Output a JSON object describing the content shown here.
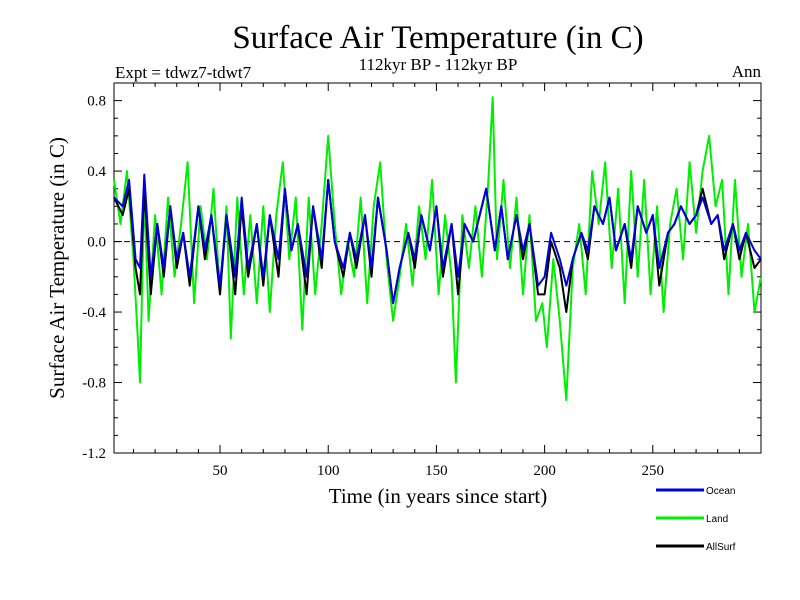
{
  "chart_data": {
    "type": "line",
    "title": "Surface Air Temperature (in C)",
    "subtitle": "112kyr BP - 112kyr BP",
    "experiment_label": "Expt = tdwz7-tdwt7",
    "season_label": "Ann",
    "xlabel": "Time (in years since start)",
    "ylabel": "Surface Air Temperature (in C)",
    "xlim": [
      1,
      300
    ],
    "ylim": [
      -1.2,
      0.9
    ],
    "x_ticks": [
      50,
      100,
      150,
      200,
      250
    ],
    "x_tick_labels": [
      "50",
      "100",
      "150",
      "200",
      "250"
    ],
    "y_ticks": [
      -1.2,
      -0.8,
      -0.4,
      0.0,
      0.4,
      0.8
    ],
    "y_tick_labels": [
      "-1.2",
      "-0.8",
      "-0.4",
      "0.0",
      "0.4",
      "0.8"
    ],
    "zero_line": "dashed",
    "grid": false,
    "legend_position": "below-right",
    "series": [
      {
        "name": "Ocean",
        "color": "#0000dd",
        "points": [
          [
            1,
            0.25
          ],
          [
            5,
            0.2
          ],
          [
            8,
            0.35
          ],
          [
            11,
            -0.1
          ],
          [
            13,
            -0.15
          ],
          [
            15,
            0.38
          ],
          [
            18,
            -0.2
          ],
          [
            21,
            0.1
          ],
          [
            24,
            -0.15
          ],
          [
            27,
            0.2
          ],
          [
            30,
            -0.1
          ],
          [
            33,
            0.05
          ],
          [
            36,
            -0.2
          ],
          [
            40,
            0.2
          ],
          [
            43,
            -0.05
          ],
          [
            46,
            0.15
          ],
          [
            50,
            -0.25
          ],
          [
            53,
            0.15
          ],
          [
            57,
            -0.2
          ],
          [
            60,
            0.25
          ],
          [
            63,
            -0.15
          ],
          [
            67,
            0.1
          ],
          [
            70,
            -0.2
          ],
          [
            73,
            0.15
          ],
          [
            77,
            -0.1
          ],
          [
            80,
            0.3
          ],
          [
            83,
            -0.05
          ],
          [
            86,
            0.1
          ],
          [
            90,
            -0.2
          ],
          [
            93,
            0.2
          ],
          [
            97,
            -0.1
          ],
          [
            100,
            0.35
          ],
          [
            103,
            0.0
          ],
          [
            107,
            -0.15
          ],
          [
            110,
            0.05
          ],
          [
            113,
            -0.1
          ],
          [
            117,
            0.15
          ],
          [
            120,
            -0.15
          ],
          [
            123,
            0.25
          ],
          [
            127,
            -0.05
          ],
          [
            130,
            -0.35
          ],
          [
            133,
            -0.15
          ],
          [
            137,
            0.05
          ],
          [
            140,
            -0.1
          ],
          [
            143,
            0.15
          ],
          [
            147,
            -0.05
          ],
          [
            150,
            0.2
          ],
          [
            153,
            -0.15
          ],
          [
            157,
            0.1
          ],
          [
            160,
            -0.2
          ],
          [
            163,
            0.1
          ],
          [
            167,
            0.0
          ],
          [
            170,
            0.15
          ],
          [
            173,
            0.3
          ],
          [
            177,
            -0.05
          ],
          [
            180,
            0.2
          ],
          [
            183,
            -0.1
          ],
          [
            187,
            0.15
          ],
          [
            190,
            -0.05
          ],
          [
            193,
            0.1
          ],
          [
            197,
            -0.25
          ],
          [
            200,
            -0.2
          ],
          [
            203,
            0.05
          ],
          [
            207,
            -0.1
          ],
          [
            210,
            -0.25
          ],
          [
            213,
            -0.1
          ],
          [
            217,
            0.05
          ],
          [
            220,
            -0.05
          ],
          [
            223,
            0.2
          ],
          [
            227,
            0.1
          ],
          [
            230,
            0.25
          ],
          [
            233,
            -0.05
          ],
          [
            237,
            0.1
          ],
          [
            240,
            -0.1
          ],
          [
            243,
            0.2
          ],
          [
            247,
            0.05
          ],
          [
            250,
            0.15
          ],
          [
            253,
            -0.15
          ],
          [
            257,
            0.05
          ],
          [
            260,
            0.1
          ],
          [
            263,
            0.2
          ],
          [
            267,
            0.1
          ],
          [
            270,
            0.15
          ],
          [
            273,
            0.25
          ],
          [
            277,
            0.1
          ],
          [
            280,
            0.15
          ],
          [
            283,
            -0.05
          ],
          [
            287,
            0.1
          ],
          [
            290,
            -0.05
          ],
          [
            293,
            0.05
          ],
          [
            297,
            -0.05
          ],
          [
            300,
            -0.1
          ]
        ]
      },
      {
        "name": "Land",
        "color": "#00ee00",
        "points": [
          [
            1,
            0.35
          ],
          [
            4,
            0.1
          ],
          [
            7,
            0.4
          ],
          [
            10,
            -0.1
          ],
          [
            12,
            -0.55
          ],
          [
            13,
            -0.8
          ],
          [
            15,
            0.3
          ],
          [
            17,
            -0.45
          ],
          [
            20,
            0.15
          ],
          [
            23,
            -0.3
          ],
          [
            26,
            0.25
          ],
          [
            29,
            -0.2
          ],
          [
            32,
            0.1
          ],
          [
            35,
            0.45
          ],
          [
            38,
            -0.35
          ],
          [
            41,
            0.2
          ],
          [
            44,
            -0.1
          ],
          [
            47,
            0.3
          ],
          [
            50,
            -0.3
          ],
          [
            53,
            0.2
          ],
          [
            55,
            -0.55
          ],
          [
            58,
            0.25
          ],
          [
            61,
            -0.3
          ],
          [
            64,
            0.15
          ],
          [
            67,
            -0.35
          ],
          [
            70,
            0.2
          ],
          [
            73,
            -0.4
          ],
          [
            76,
            0.15
          ],
          [
            79,
            0.45
          ],
          [
            82,
            -0.1
          ],
          [
            85,
            0.25
          ],
          [
            88,
            -0.5
          ],
          [
            91,
            0.25
          ],
          [
            94,
            -0.3
          ],
          [
            97,
            0.1
          ],
          [
            100,
            0.6
          ],
          [
            103,
            0.1
          ],
          [
            106,
            -0.3
          ],
          [
            109,
            0.0
          ],
          [
            112,
            -0.2
          ],
          [
            115,
            0.25
          ],
          [
            118,
            -0.35
          ],
          [
            121,
            0.2
          ],
          [
            124,
            0.45
          ],
          [
            127,
            -0.1
          ],
          [
            130,
            -0.45
          ],
          [
            133,
            -0.2
          ],
          [
            136,
            0.1
          ],
          [
            139,
            -0.25
          ],
          [
            142,
            0.2
          ],
          [
            145,
            -0.1
          ],
          [
            148,
            0.35
          ],
          [
            151,
            -0.3
          ],
          [
            154,
            0.15
          ],
          [
            157,
            -0.2
          ],
          [
            159,
            -0.8
          ],
          [
            162,
            0.15
          ],
          [
            165,
            -0.15
          ],
          [
            168,
            0.2
          ],
          [
            171,
            -0.2
          ],
          [
            174,
            0.35
          ],
          [
            176,
            0.82
          ],
          [
            178,
            -0.1
          ],
          [
            181,
            0.35
          ],
          [
            184,
            -0.15
          ],
          [
            187,
            0.25
          ],
          [
            190,
            -0.3
          ],
          [
            193,
            0.15
          ],
          [
            196,
            -0.45
          ],
          [
            199,
            -0.35
          ],
          [
            201,
            -0.6
          ],
          [
            204,
            -0.1
          ],
          [
            207,
            -0.45
          ],
          [
            210,
            -0.9
          ],
          [
            213,
            -0.15
          ],
          [
            216,
            0.1
          ],
          [
            219,
            -0.3
          ],
          [
            222,
            0.4
          ],
          [
            225,
            0.1
          ],
          [
            228,
            0.45
          ],
          [
            231,
            -0.15
          ],
          [
            234,
            0.3
          ],
          [
            237,
            -0.35
          ],
          [
            240,
            0.4
          ],
          [
            243,
            -0.2
          ],
          [
            246,
            0.35
          ],
          [
            249,
            -0.3
          ],
          [
            252,
            0.2
          ],
          [
            255,
            -0.4
          ],
          [
            258,
            0.1
          ],
          [
            261,
            0.3
          ],
          [
            264,
            -0.1
          ],
          [
            267,
            0.45
          ],
          [
            270,
            0.05
          ],
          [
            273,
            0.4
          ],
          [
            276,
            0.6
          ],
          [
            279,
            0.2
          ],
          [
            282,
            0.35
          ],
          [
            285,
            -0.3
          ],
          [
            288,
            0.35
          ],
          [
            291,
            -0.2
          ],
          [
            294,
            0.1
          ],
          [
            297,
            -0.4
          ],
          [
            300,
            -0.2
          ]
        ]
      },
      {
        "name": "AllSurf",
        "color": "#000000",
        "points": [
          [
            1,
            0.25
          ],
          [
            5,
            0.15
          ],
          [
            8,
            0.3
          ],
          [
            11,
            -0.15
          ],
          [
            13,
            -0.3
          ],
          [
            15,
            0.3
          ],
          [
            18,
            -0.3
          ],
          [
            21,
            0.1
          ],
          [
            24,
            -0.2
          ],
          [
            27,
            0.2
          ],
          [
            30,
            -0.15
          ],
          [
            33,
            0.05
          ],
          [
            36,
            -0.25
          ],
          [
            40,
            0.2
          ],
          [
            43,
            -0.1
          ],
          [
            46,
            0.15
          ],
          [
            50,
            -0.3
          ],
          [
            53,
            0.15
          ],
          [
            57,
            -0.3
          ],
          [
            60,
            0.2
          ],
          [
            63,
            -0.2
          ],
          [
            67,
            0.1
          ],
          [
            70,
            -0.25
          ],
          [
            73,
            0.15
          ],
          [
            77,
            -0.2
          ],
          [
            80,
            0.3
          ],
          [
            83,
            -0.05
          ],
          [
            86,
            0.1
          ],
          [
            90,
            -0.3
          ],
          [
            93,
            0.2
          ],
          [
            97,
            -0.15
          ],
          [
            100,
            0.35
          ],
          [
            103,
            0.0
          ],
          [
            107,
            -0.2
          ],
          [
            110,
            0.05
          ],
          [
            113,
            -0.15
          ],
          [
            117,
            0.15
          ],
          [
            120,
            -0.2
          ],
          [
            123,
            0.25
          ],
          [
            127,
            -0.05
          ],
          [
            130,
            -0.35
          ],
          [
            133,
            -0.15
          ],
          [
            137,
            0.05
          ],
          [
            140,
            -0.15
          ],
          [
            143,
            0.15
          ],
          [
            147,
            -0.05
          ],
          [
            150,
            0.2
          ],
          [
            153,
            -0.2
          ],
          [
            157,
            0.1
          ],
          [
            160,
            -0.3
          ],
          [
            163,
            0.1
          ],
          [
            167,
            0.0
          ],
          [
            170,
            0.15
          ],
          [
            173,
            0.3
          ],
          [
            177,
            -0.05
          ],
          [
            180,
            0.2
          ],
          [
            183,
            -0.1
          ],
          [
            187,
            0.15
          ],
          [
            190,
            -0.1
          ],
          [
            193,
            0.1
          ],
          [
            197,
            -0.3
          ],
          [
            200,
            -0.3
          ],
          [
            203,
            0.0
          ],
          [
            207,
            -0.15
          ],
          [
            210,
            -0.4
          ],
          [
            213,
            -0.1
          ],
          [
            217,
            0.05
          ],
          [
            220,
            -0.1
          ],
          [
            223,
            0.2
          ],
          [
            227,
            0.1
          ],
          [
            230,
            0.25
          ],
          [
            233,
            -0.05
          ],
          [
            237,
            0.1
          ],
          [
            240,
            -0.15
          ],
          [
            243,
            0.2
          ],
          [
            247,
            0.05
          ],
          [
            250,
            0.15
          ],
          [
            253,
            -0.25
          ],
          [
            257,
            0.05
          ],
          [
            260,
            0.1
          ],
          [
            263,
            0.2
          ],
          [
            267,
            0.1
          ],
          [
            270,
            0.15
          ],
          [
            273,
            0.3
          ],
          [
            277,
            0.1
          ],
          [
            280,
            0.15
          ],
          [
            283,
            -0.1
          ],
          [
            287,
            0.1
          ],
          [
            290,
            -0.1
          ],
          [
            293,
            0.05
          ],
          [
            297,
            -0.15
          ],
          [
            300,
            -0.1
          ]
        ]
      }
    ]
  }
}
